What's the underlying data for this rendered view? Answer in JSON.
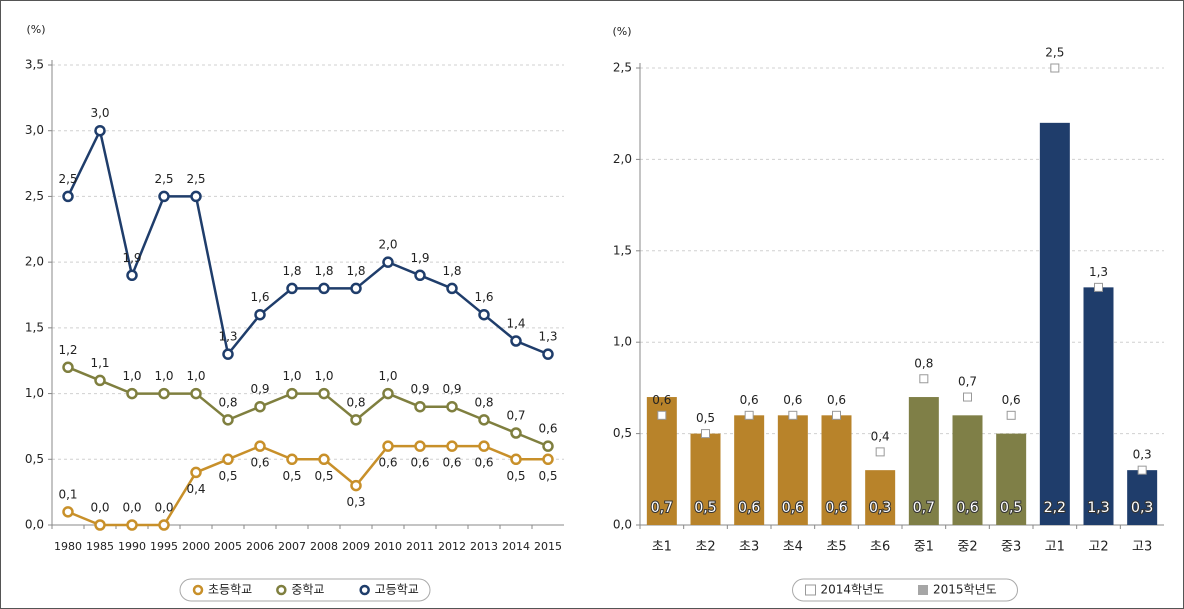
{
  "chart_data": [
    {
      "type": "line",
      "unit": "(%)",
      "categories": [
        "1980",
        "1985",
        "1990",
        "1995",
        "2000",
        "2005",
        "2006",
        "2007",
        "2008",
        "2009",
        "2010",
        "2011",
        "2012",
        "2013",
        "2014",
        "2015"
      ],
      "series": [
        {
          "name": "초등학교",
          "color": "#c8902a",
          "values": [
            0.1,
            0.0,
            0.0,
            0.0,
            0.4,
            0.5,
            0.6,
            0.5,
            0.5,
            0.3,
            0.6,
            0.6,
            0.6,
            0.6,
            0.5,
            0.5
          ],
          "value_labels": [
            "0,1",
            "0,0",
            "0,0",
            "0,0",
            "0,4",
            "0,5",
            "0,6",
            "0,5",
            "0,5",
            "0,3",
            "0,6",
            "0,6",
            "0,6",
            "0,6",
            "0,5",
            "0,5"
          ]
        },
        {
          "name": "중학교",
          "color": "#7f7f3f",
          "values": [
            1.2,
            1.1,
            1.0,
            1.0,
            1.0,
            0.8,
            0.9,
            1.0,
            1.0,
            0.8,
            1.0,
            0.9,
            0.9,
            0.8,
            0.7,
            0.6
          ],
          "value_labels": [
            "1,2",
            "1,1",
            "1,0",
            "1,0",
            "1,0",
            "0,8",
            "0,9",
            "1,0",
            "1,0",
            "0,8",
            "1,0",
            "0,9",
            "0,9",
            "0,8",
            "0,7",
            "0,6"
          ]
        },
        {
          "name": "고등학교",
          "color": "#1f3d6b",
          "values": [
            2.5,
            3.0,
            1.9,
            2.5,
            2.5,
            1.3,
            1.6,
            1.8,
            1.8,
            1.8,
            2.0,
            1.9,
            1.8,
            1.6,
            1.4,
            1.3
          ],
          "value_labels": [
            "2,5",
            "3,0",
            "1,9",
            "2,5",
            "2,5",
            "1,3",
            "1,6",
            "1,8",
            "1,8",
            "1,8",
            "2,0",
            "1,9",
            "1,8",
            "1,6",
            "1,4",
            "1,3"
          ]
        }
      ],
      "ylim": [
        0,
        3.5
      ],
      "yticks": [
        {
          "value": 0,
          "label": "0,0"
        },
        {
          "value": 0.5,
          "label": "0,5"
        },
        {
          "value": 1,
          "label": "1,0"
        },
        {
          "value": 1.5,
          "label": "1,5"
        },
        {
          "value": 2,
          "label": "2,0"
        },
        {
          "value": 2.5,
          "label": "2,5"
        },
        {
          "value": 3,
          "label": "3,0"
        },
        {
          "value": 3.5,
          "label": "3,5"
        }
      ],
      "grid": true
    },
    {
      "type": "bar",
      "unit": "(%)",
      "categories": [
        "초1",
        "초2",
        "초3",
        "초4",
        "초5",
        "초6",
        "중1",
        "중2",
        "중3",
        "고1",
        "고2",
        "고3"
      ],
      "series": [
        {
          "name": "2014학년도",
          "color": "#ffffff",
          "marker": "square",
          "values": [
            0.6,
            0.5,
            0.6,
            0.6,
            0.6,
            0.4,
            0.8,
            0.7,
            0.6,
            2.5,
            1.3,
            0.3
          ],
          "value_labels": [
            "0,6",
            "0,5",
            "0,6",
            "0,6",
            "0,6",
            "0,4",
            "0,8",
            "0,7",
            "0,6",
            "2,5",
            "1,3",
            "0,3"
          ]
        },
        {
          "name": "2015학년도",
          "color": "#a6a6a6",
          "colors": [
            "#b8832a",
            "#b8832a",
            "#b8832a",
            "#b8832a",
            "#b8832a",
            "#b8832a",
            "#7f7f47",
            "#7f7f47",
            "#7f7f47",
            "#1f3d6b",
            "#1f3d6b",
            "#1f3d6b"
          ],
          "values": [
            0.7,
            0.5,
            0.6,
            0.6,
            0.6,
            0.3,
            0.7,
            0.6,
            0.5,
            2.2,
            1.3,
            0.3
          ],
          "value_labels": [
            "0,7",
            "0,5",
            "0,6",
            "0,6",
            "0,6",
            "0,3",
            "0,7",
            "0,6",
            "0,5",
            "2,2",
            "1,3",
            "0,3"
          ]
        }
      ],
      "ylim": [
        0,
        2.5
      ],
      "yticks": [
        {
          "value": 0,
          "label": "0,0"
        },
        {
          "value": 0.5,
          "label": "0,5"
        },
        {
          "value": 1,
          "label": "1,0"
        },
        {
          "value": 1.5,
          "label": "1,5"
        },
        {
          "value": 2,
          "label": "2,0"
        },
        {
          "value": 2.5,
          "label": "2,5"
        }
      ],
      "grid": true
    }
  ]
}
